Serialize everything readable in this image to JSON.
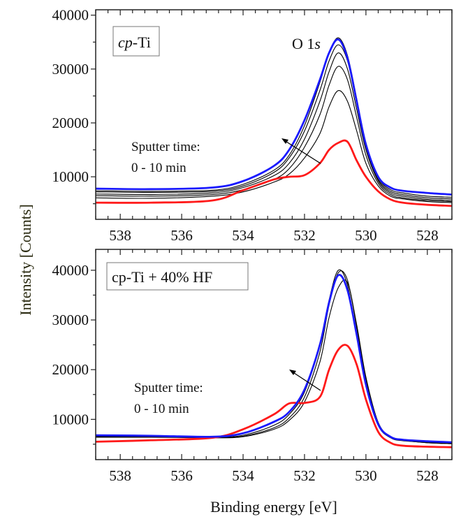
{
  "chart_data": [
    {
      "type": "line",
      "panel_label": "cp-Ti",
      "panel_label_italic_part": "cp",
      "panel_label_rest": "-Ti",
      "peak_label": "O 1",
      "peak_label_italic": "s",
      "annotation_line1": "Sputter time:",
      "annotation_line2": "0 - 10 min",
      "xlim": [
        538.8,
        527.2
      ],
      "ylim": [
        2100,
        41000
      ],
      "x_ticks": [
        538,
        536,
        534,
        532,
        530,
        528
      ],
      "x_tick_labels": [
        "538",
        "536",
        "534",
        "532",
        "530",
        "528"
      ],
      "y_ticks": [
        10000,
        20000,
        30000,
        40000
      ],
      "y_tick_labels": [
        "10000",
        "20000",
        "30000",
        "40000"
      ],
      "x": [
        538.8,
        537,
        535,
        534,
        533,
        532.5,
        532,
        531.5,
        531.2,
        530.9,
        530.6,
        530.3,
        530,
        529.6,
        529.2,
        528.8,
        528,
        527.2
      ],
      "series": [
        {
          "color": "#000000",
          "values": [
            7400,
            7300,
            7500,
            8600,
            11200,
            14000,
            19500,
            27500,
            33000,
            35800,
            32500,
            24500,
            16000,
            9800,
            7600,
            7000,
            6400,
            6200
          ]
        },
        {
          "color": "#000000",
          "values": [
            7200,
            7100,
            7300,
            8300,
            10800,
            13500,
            18500,
            26000,
            31500,
            34500,
            31500,
            23500,
            15500,
            9500,
            7300,
            6700,
            6100,
            5900
          ]
        },
        {
          "color": "#000000",
          "values": [
            6800,
            6700,
            7000,
            8000,
            10200,
            12500,
            17000,
            24000,
            29500,
            33000,
            30000,
            22500,
            15000,
            9200,
            7000,
            6400,
            5800,
            5600
          ]
        },
        {
          "color": "#000000",
          "values": [
            6500,
            6400,
            6700,
            7600,
            9500,
            11500,
            15500,
            21500,
            27000,
            30500,
            28000,
            21000,
            14000,
            8800,
            6700,
            6100,
            5600,
            5400
          ]
        },
        {
          "color": "#000000",
          "values": [
            6100,
            6000,
            6400,
            7200,
            9000,
            10500,
            13500,
            18000,
            23000,
            26000,
            24000,
            18500,
            12500,
            8300,
            6400,
            5900,
            5400,
            5200
          ]
        },
        {
          "color": "#ff1a1a",
          "values": [
            5200,
            5200,
            5600,
            7500,
            9500,
            10000,
            10300,
            12500,
            15000,
            16300,
            16500,
            13000,
            10000,
            7300,
            5800,
            5200,
            4800,
            4600
          ]
        },
        {
          "color": "#1a1aff",
          "values": [
            7800,
            7700,
            8000,
            9200,
            12000,
            15000,
            20500,
            28000,
            33000,
            35500,
            32000,
            24000,
            16000,
            10000,
            8000,
            7400,
            7000,
            6700
          ]
        }
      ]
    },
    {
      "type": "line",
      "panel_label": "cp-Ti + 40% HF",
      "annotation_line1": "Sputter time:",
      "annotation_line2": "0 - 10 min",
      "xlim": [
        538.8,
        527.2
      ],
      "ylim": [
        1900,
        44200
      ],
      "x_ticks": [
        538,
        536,
        534,
        532,
        530,
        528
      ],
      "x_tick_labels": [
        "538",
        "536",
        "534",
        "532",
        "530",
        "528"
      ],
      "y_ticks": [
        10000,
        20000,
        30000,
        40000
      ],
      "y_tick_labels": [
        "10000",
        "20000",
        "30000",
        "40000"
      ],
      "x": [
        538.8,
        537,
        535,
        534,
        533,
        532.5,
        532,
        531.5,
        531.2,
        530.9,
        530.6,
        530.3,
        530,
        529.6,
        529.2,
        528.8,
        528,
        527.2
      ],
      "series": [
        {
          "color": "#000000",
          "values": [
            6600,
            6600,
            6400,
            6800,
            8800,
            11000,
            15500,
            25000,
            34000,
            40000,
            37000,
            27000,
            17000,
            8800,
            6300,
            5700,
            5400,
            5200
          ]
        },
        {
          "color": "#000000",
          "values": [
            6500,
            6500,
            6300,
            6600,
            8300,
            10300,
            14500,
            23500,
            33000,
            39500,
            38000,
            28500,
            18000,
            9200,
            6400,
            5800,
            5300,
            5100
          ]
        },
        {
          "color": "#000000",
          "values": [
            6400,
            6400,
            6300,
            6500,
            8000,
            9800,
            13500,
            21500,
            30500,
            36500,
            37500,
            29000,
            18500,
            9400,
            6500,
            5800,
            5300,
            5100
          ]
        },
        {
          "color": "#ff1a1a",
          "values": [
            5500,
            5800,
            6300,
            8000,
            11000,
            13200,
            13300,
            14500,
            20000,
            24000,
            24800,
            21000,
            14000,
            7500,
            5300,
            4700,
            4500,
            4400
          ]
        },
        {
          "color": "#1a1aff",
          "values": [
            6800,
            6700,
            6500,
            7200,
            9500,
            11500,
            16000,
            25000,
            33500,
            39000,
            36000,
            27000,
            17000,
            9000,
            6500,
            5900,
            5600,
            5400
          ]
        }
      ]
    }
  ],
  "ylabel": "Intensity [Counts]",
  "xlabel": "Binding energy [eV]"
}
